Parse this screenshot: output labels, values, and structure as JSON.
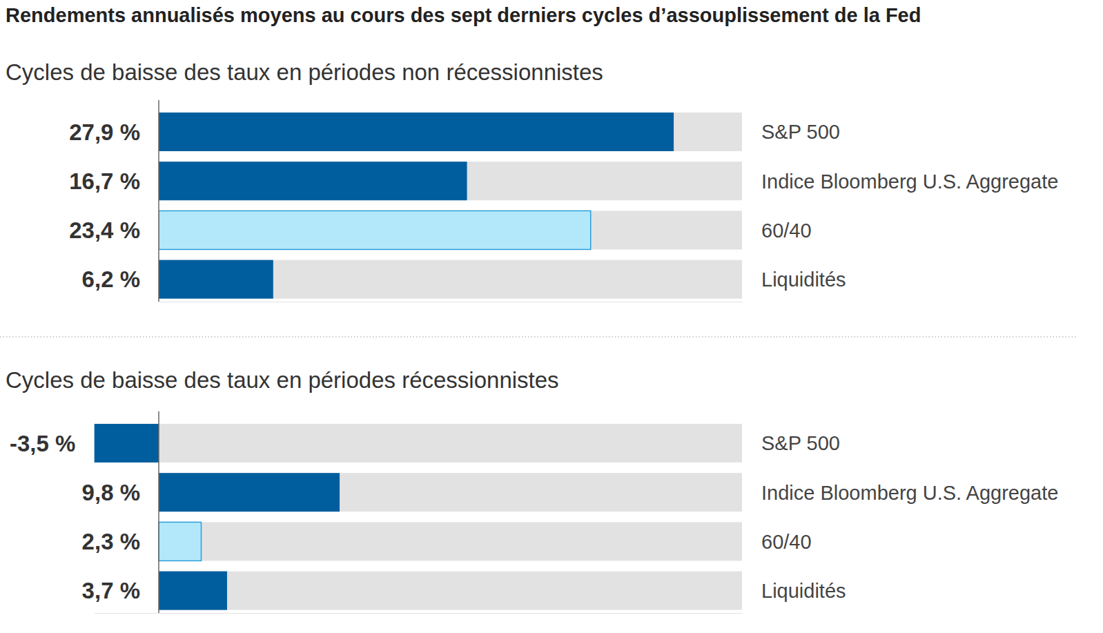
{
  "chart_data": [
    {
      "type": "bar",
      "orientation": "horizontal",
      "title": "Rendements annualisés moyens au cours des sept derniers cycles d’assouplissement de la Fed",
      "subtitle": "Cycles de baisse des taux en périodes non récessionnistes",
      "categories": [
        "S&P 500",
        "Indice Bloomberg U.S. Aggregate",
        "60/40",
        "Liquidités"
      ],
      "values": [
        27.9,
        16.7,
        23.4,
        6.2
      ],
      "value_labels": [
        "27,9 %",
        "16,7 %",
        "23,4 %",
        "6,2 %"
      ],
      "colors": [
        "#005e9e",
        "#005e9e",
        "#b3e8fb",
        "#005e9e"
      ],
      "data_labels": true,
      "tick_labels": false,
      "grid": false,
      "xlim": [
        0,
        31.6
      ],
      "xticks": []
    },
    {
      "type": "bar",
      "orientation": "horizontal",
      "subtitle": "Cycles de baisse des taux en périodes récessionnistes",
      "categories": [
        "S&P 500",
        "Indice Bloomberg U.S. Aggregate",
        "60/40",
        "Liquidités"
      ],
      "values": [
        -3.5,
        9.8,
        2.3,
        3.7
      ],
      "value_labels": [
        "-3,5 %",
        "9,8 %",
        "2,3 %",
        "3,7 %"
      ],
      "colors": [
        "#005e9e",
        "#005e9e",
        "#b3e8fb",
        "#005e9e"
      ],
      "data_labels": true,
      "tick_labels": false,
      "grid": false,
      "xlim": [
        -3.5,
        31.6
      ],
      "xticks": []
    }
  ]
}
